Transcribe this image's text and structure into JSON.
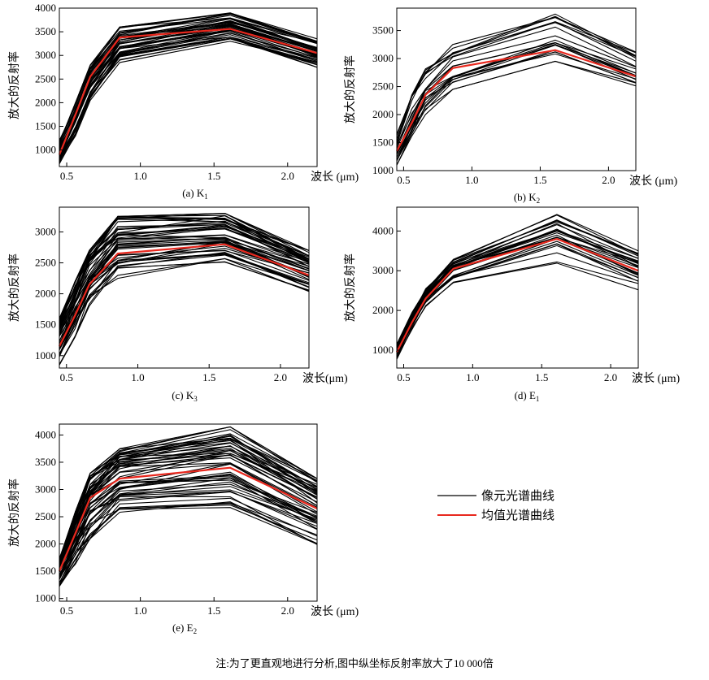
{
  "chart_data": [
    {
      "type": "line",
      "caption_main": "(a) K",
      "caption_sub": "1",
      "ylabel": "放大的反射率",
      "xunit": "波长 (μm)",
      "x": [
        0.45,
        0.56,
        0.66,
        0.86,
        1.61,
        2.2
      ],
      "xlim": [
        0.45,
        2.2
      ],
      "ylim": [
        650,
        4000
      ],
      "xticks": [
        "0.5",
        "1.0",
        "1.5",
        "2.0"
      ],
      "xtick_values": [
        0.5,
        1.0,
        1.5,
        2.0
      ],
      "yticks": [
        "1000",
        "1500",
        "2000",
        "2500",
        "3000",
        "3500",
        "4000"
      ],
      "ytick_values": [
        1000,
        1500,
        2000,
        2500,
        3000,
        3500,
        4000
      ],
      "mean_values": [
        900,
        1750,
        2550,
        3380,
        3560,
        3050
      ],
      "pixel_curve": {
        "count": 45,
        "low": [
          700,
          1300,
          2050,
          2850,
          3300,
          2750
        ],
        "high": [
          1200,
          2000,
          2800,
          3600,
          3900,
          3350
        ]
      }
    },
    {
      "type": "line",
      "caption_main": "(b) K",
      "caption_sub": "2",
      "ylabel": "放大的反射率",
      "xunit": "波长 (μm)",
      "x": [
        0.45,
        0.56,
        0.66,
        0.86,
        1.61,
        2.2
      ],
      "xlim": [
        0.45,
        2.2
      ],
      "ylim": [
        1000,
        3900
      ],
      "xticks": [
        "0.5",
        "1.0",
        "1.5",
        "2.0"
      ],
      "xtick_values": [
        0.5,
        1.0,
        1.5,
        2.0
      ],
      "yticks": [
        "1000",
        "1500",
        "2000",
        "2500",
        "3000",
        "3500"
      ],
      "ytick_values": [
        1000,
        1500,
        2000,
        2500,
        3000,
        3500
      ],
      "mean_values": [
        1350,
        1850,
        2350,
        2830,
        3150,
        2680
      ],
      "pixel_curve": {
        "count": 22,
        "low": [
          1100,
          1550,
          2000,
          2450,
          2950,
          2500
        ],
        "high": [
          1650,
          2450,
          2850,
          3250,
          3800,
          3120
        ]
      }
    },
    {
      "type": "line",
      "caption_main": "(c) K",
      "caption_sub": "3",
      "ylabel": "放大的反射率",
      "xunit": "波长(μm)",
      "x": [
        0.45,
        0.56,
        0.66,
        0.86,
        1.61,
        2.2
      ],
      "xlim": [
        0.45,
        2.2
      ],
      "ylim": [
        800,
        3400
      ],
      "xticks": [
        "0.5",
        "1.0",
        "1.5",
        "2.0"
      ],
      "xtick_values": [
        0.5,
        1.0,
        1.5,
        2.0
      ],
      "yticks": [
        "1000",
        "1500",
        "2000",
        "2500",
        "3000"
      ],
      "ytick_values": [
        1000,
        1500,
        2000,
        2500,
        3000
      ],
      "mean_values": [
        1150,
        1650,
        2150,
        2650,
        2800,
        2300
      ],
      "pixel_curve": {
        "count": 50,
        "low": [
          850,
          1300,
          1800,
          2250,
          2450,
          2000
        ],
        "high": [
          1600,
          2200,
          2700,
          3250,
          3300,
          2700
        ]
      }
    },
    {
      "type": "line",
      "caption_main": "(d) E",
      "caption_sub": "1",
      "ylabel": "放大的反射率",
      "xunit": "波长 (μm)",
      "x": [
        0.45,
        0.56,
        0.66,
        0.86,
        1.61,
        2.2
      ],
      "xlim": [
        0.45,
        2.2
      ],
      "ylim": [
        550,
        4600
      ],
      "xticks": [
        "0.5",
        "1.0",
        "1.5",
        "2.0"
      ],
      "xtick_values": [
        0.5,
        1.0,
        1.5,
        2.0
      ],
      "yticks": [
        "1000",
        "2000",
        "3000",
        "4000"
      ],
      "ytick_values": [
        1000,
        2000,
        3000,
        4000
      ],
      "mean_values": [
        950,
        1700,
        2300,
        3050,
        3800,
        3000
      ],
      "pixel_curve": {
        "count": 28,
        "low": [
          750,
          1500,
          2100,
          2700,
          3150,
          2500
        ],
        "high": [
          1150,
          1950,
          2550,
          3300,
          4450,
          3500
        ]
      }
    },
    {
      "type": "line",
      "caption_main": "(e) E",
      "caption_sub": "2",
      "ylabel": "放大的反射率",
      "xunit": "波长 (μm)",
      "x": [
        0.45,
        0.56,
        0.66,
        0.86,
        1.61,
        2.2
      ],
      "xlim": [
        0.45,
        2.2
      ],
      "ylim": [
        950,
        4200
      ],
      "xticks": [
        "0.5",
        "1.0",
        "1.5",
        "2.0"
      ],
      "xtick_values": [
        0.5,
        1.0,
        1.5,
        2.0
      ],
      "yticks": [
        "1000",
        "1500",
        "2000",
        "2500",
        "3000",
        "3500",
        "4000"
      ],
      "ytick_values": [
        1000,
        1500,
        2000,
        2500,
        3000,
        3500,
        4000
      ],
      "mean_values": [
        1500,
        2200,
        2850,
        3200,
        3400,
        2650
      ],
      "pixel_curve": {
        "count": 55,
        "low": [
          1200,
          1600,
          2050,
          2550,
          2600,
          1950
        ],
        "high": [
          1750,
          2600,
          3300,
          3750,
          4150,
          3200
        ]
      }
    }
  ],
  "legend": [
    {
      "label": "像元光谱曲线",
      "color": "#000000"
    },
    {
      "label": "均值光谱曲线",
      "color": "#e8281e"
    }
  ],
  "footnote": "注:为了更直观地进行分析,图中纵坐标反射率放大了10 000倍"
}
